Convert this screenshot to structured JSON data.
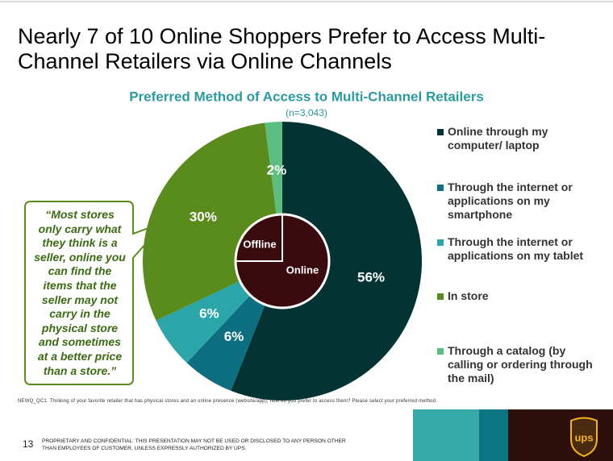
{
  "title": "Nearly 7 of 10 Online Shoppers Prefer to Access Multi-Channel Retailers via Online Channels",
  "chart_data": {
    "type": "pie",
    "title": "Preferred Method of Access to Multi-Channel Retailers",
    "subtitle": "(n=3,043)",
    "categories": [
      "Online through my computer/ laptop",
      "Through the internet or applications on my smartphone",
      "Through the internet or applications on my tablet",
      "In store",
      "Through a catalog (by calling or ordering through the mail)"
    ],
    "values": [
      56,
      6,
      6,
      30,
      2
    ],
    "value_labels": [
      "56%",
      "6%",
      "6%",
      "30%",
      "2%"
    ],
    "colors": [
      "#033333",
      "#0c6e80",
      "#2aa5a8",
      "#5a8b1d",
      "#5cbf80"
    ],
    "inner_labels": [
      "Offline",
      "Online"
    ]
  },
  "quote": "“Most stores only carry what they think is a seller, online you can find the items that the seller may not carry in the physical store and sometimes at a better price than a store.”",
  "footnote": "NEWQ_QC1. Thinking of your favorite retailer that has physical stores and an online presence (website/app), how do you prefer to access them? Please select your preferred method.",
  "footer": {
    "page": "13",
    "confidential": "PROPRIETARY AND CONFIDENTIAL: THIS PRESENTATION MAY NOT BE USED OR DISCLOSED TO ANY PERSON OTHER THAN EMPLOYEES OF CUSTOMER, UNLESS EXPRESSLY AUTHORIZED BY UPS.",
    "logo": "ups"
  }
}
